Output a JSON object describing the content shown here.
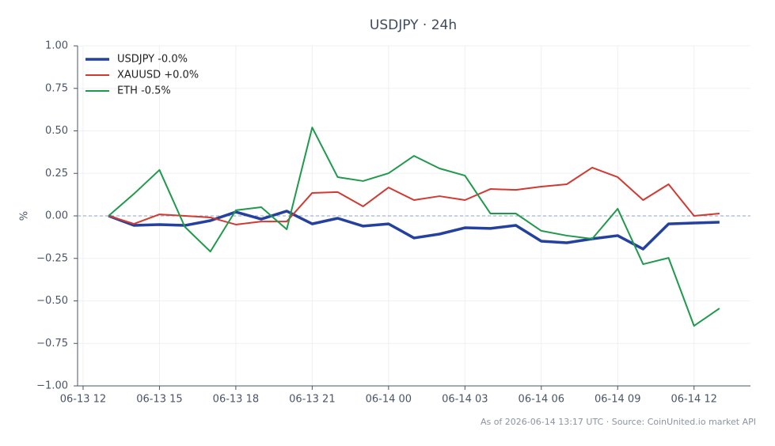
{
  "chart_data": {
    "type": "line",
    "title": "USDJPY · 24h",
    "y_label": "%",
    "footnote": "As of 2026-06-14 13:17 UTC · Source: CoinUnited.io market API",
    "x": [
      "06-13 13",
      "06-13 14",
      "06-13 15",
      "06-13 16",
      "06-13 17",
      "06-13 18",
      "06-13 19",
      "06-13 20",
      "06-13 21",
      "06-13 22",
      "06-13 23",
      "06-14 00",
      "06-14 01",
      "06-14 02",
      "06-14 03",
      "06-14 04",
      "06-14 05",
      "06-14 06",
      "06-14 07",
      "06-14 08",
      "06-14 09",
      "06-14 10",
      "06-14 11",
      "06-14 12",
      "06-14 13"
    ],
    "series": [
      {
        "name": "USDJPY -0.0%",
        "color": "#2541a0",
        "width": 3.5,
        "values": [
          0,
          -0.056,
          -0.051,
          -0.056,
          -0.028,
          0.023,
          -0.019,
          0.028,
          -0.047,
          -0.014,
          -0.06,
          -0.047,
          -0.13,
          -0.107,
          -0.07,
          -0.074,
          -0.056,
          -0.149,
          -0.158,
          -0.135,
          -0.116,
          -0.195,
          -0.047,
          -0.042,
          -0.037
        ]
      },
      {
        "name": "XAUUSD +0.0%",
        "color": "#d03a31",
        "width": 2,
        "values": [
          0,
          -0.047,
          0.009,
          0,
          -0.009,
          -0.051,
          -0.033,
          -0.033,
          0.135,
          0.14,
          0.056,
          0.167,
          0.093,
          0.116,
          0.093,
          0.158,
          0.153,
          0.172,
          0.186,
          0.284,
          0.228,
          0.093,
          0.186,
          0,
          0.014
        ]
      },
      {
        "name": "ETH -0.5%",
        "color": "#1f9a4a",
        "width": 2,
        "values": [
          0,
          0.13,
          0.27,
          -0.065,
          -0.21,
          0.033,
          0.051,
          -0.079,
          0.52,
          0.228,
          0.205,
          0.251,
          0.353,
          0.279,
          0.237,
          0.014,
          0.014,
          -0.088,
          -0.116,
          -0.135,
          0.042,
          -0.284,
          -0.247,
          -0.647,
          -0.544
        ]
      }
    ],
    "xlim": [
      "06-13 11:47",
      "06-14 14:13"
    ],
    "xticks": [
      "06-13 12",
      "06-13 15",
      "06-13 18",
      "06-13 21",
      "06-14 00",
      "06-14 03",
      "06-14 06",
      "06-14 09",
      "06-14 12"
    ],
    "ylim": [
      -1,
      1
    ],
    "yticks": [
      {
        "value": -1,
        "label": "−1.00"
      },
      {
        "value": -0.75,
        "label": "−0.75"
      },
      {
        "value": -0.5,
        "label": "−0.50"
      },
      {
        "value": -0.25,
        "label": "−0.25"
      },
      {
        "value": 0,
        "label": "0.00"
      },
      {
        "value": 0.25,
        "label": "0.25"
      },
      {
        "value": 0.5,
        "label": "0.50"
      },
      {
        "value": 0.75,
        "label": "0.75"
      },
      {
        "value": 1,
        "label": "1.00"
      }
    ],
    "grid": true,
    "zero_line": true,
    "legend": "upper-left"
  }
}
